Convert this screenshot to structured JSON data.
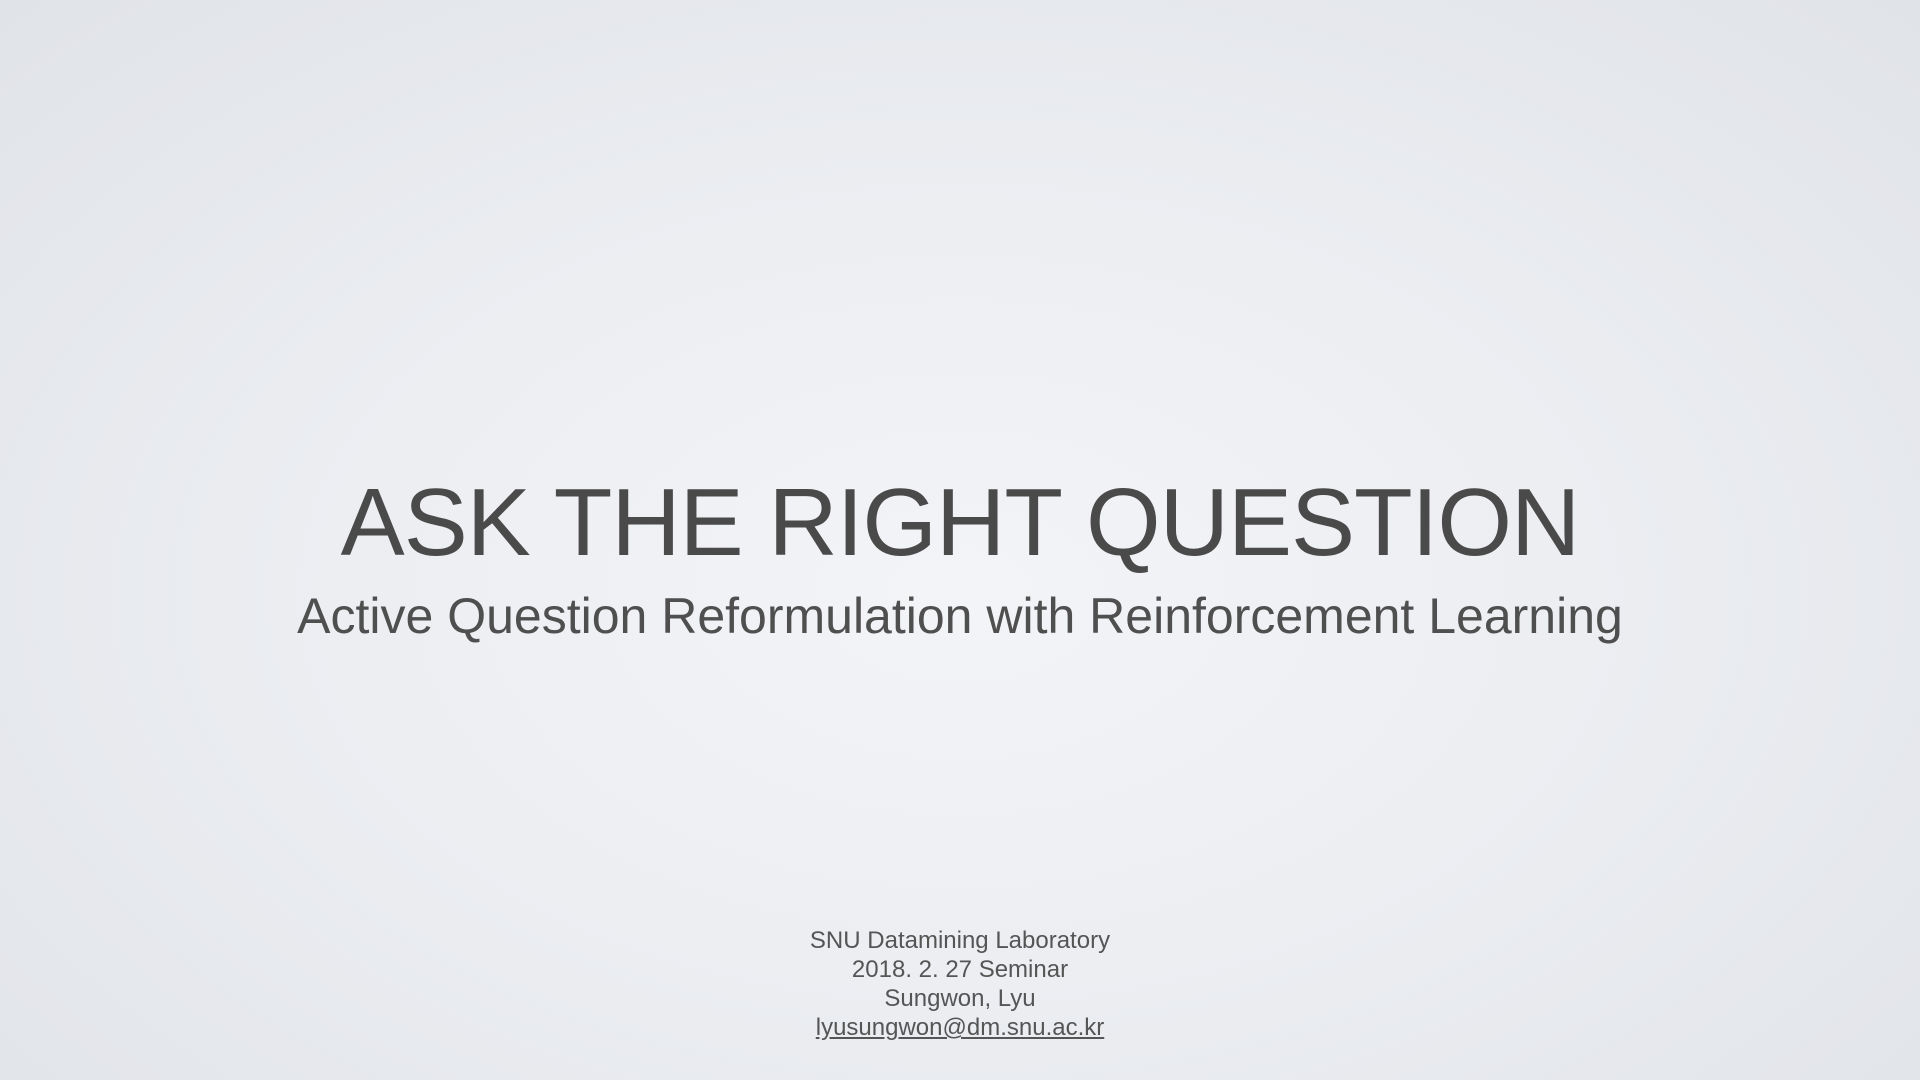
{
  "slide": {
    "title": "ASK THE RIGHT QUESTION",
    "subtitle": "Active Question Reformulation with Reinforcement Learning",
    "footer": {
      "lab": "SNU Datamining Laboratory",
      "date": "2018. 2. 27 Seminar",
      "author": "Sungwon, Lyu",
      "email": "lyusungwon@dm.snu.ac.kr"
    }
  },
  "colors": {
    "text": "#4a4a4a",
    "background": "#eceef2"
  }
}
